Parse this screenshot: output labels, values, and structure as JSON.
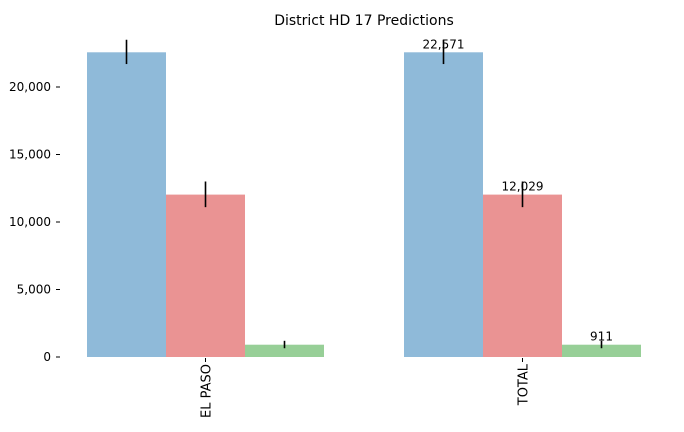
{
  "chart_data": {
    "type": "bar",
    "title": "District HD 17 Predictions",
    "categories": [
      "EL PASO",
      "TOTAL"
    ],
    "series": [
      {
        "values": [
          22571,
          22571
        ],
        "error_low": [
          21700,
          21700
        ],
        "error_high": [
          23500,
          23500
        ],
        "color": "#8fbad9"
      },
      {
        "values": [
          12029,
          12029
        ],
        "error_low": [
          11100,
          11100
        ],
        "error_high": [
          13000,
          13000
        ],
        "color": "#ea9393"
      },
      {
        "values": [
          911,
          911
        ],
        "error_low": [
          650,
          650
        ],
        "error_high": [
          1200,
          1200
        ],
        "color": "#97cf97"
      }
    ],
    "data_labels": [
      [
        null,
        "22,571"
      ],
      [
        null,
        "12,029"
      ],
      [
        null,
        "911"
      ]
    ],
    "yticks": [
      0,
      5000,
      10000,
      15000,
      20000
    ],
    "ytick_labels": [
      "0",
      "5,000",
      "10,000",
      "15,000",
      "20,000"
    ],
    "ylim": [
      0,
      24000
    ],
    "xlabel": "",
    "ylabel": "",
    "grid": false,
    "legend": false
  }
}
